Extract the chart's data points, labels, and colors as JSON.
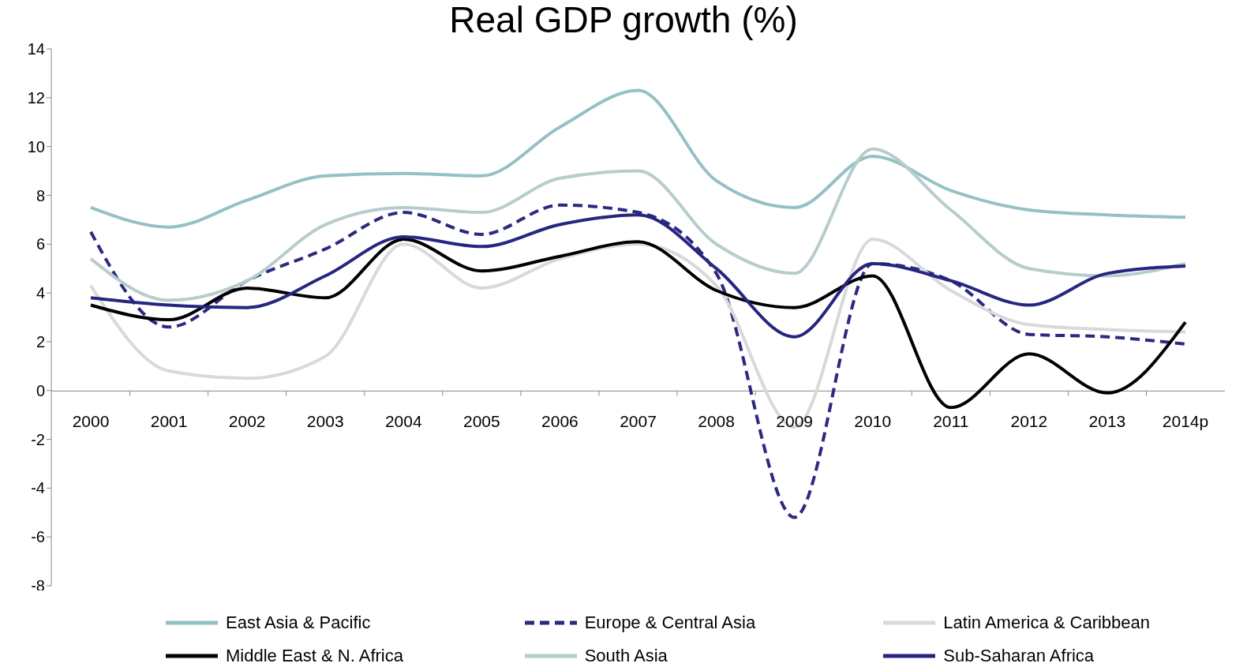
{
  "chart_data": {
    "type": "line",
    "title": "Real GDP growth (%)",
    "categories": [
      "2000",
      "2001",
      "2002",
      "2003",
      "2004",
      "2005",
      "2006",
      "2007",
      "2008",
      "2009",
      "2010",
      "2011",
      "2012",
      "2013",
      "2014p"
    ],
    "ylim": [
      -8,
      14
    ],
    "yticks": [
      -8,
      -6,
      -4,
      -2,
      0,
      2,
      4,
      6,
      8,
      10,
      12,
      14
    ],
    "grid": false,
    "legend": "bottom",
    "marker": "none",
    "series": [
      {
        "name": "East Asia & Pacific",
        "color": "#93c1c4",
        "line_style": "solid",
        "values": [
          7.5,
          6.7,
          7.8,
          8.8,
          8.9,
          8.8,
          10.8,
          12.3,
          8.6,
          7.5,
          9.6,
          8.2,
          7.4,
          7.2,
          7.1
        ]
      },
      {
        "name": "Europe & Central Asia",
        "color": "#2a2a80",
        "line_style": "dashed",
        "values": [
          6.5,
          2.6,
          4.5,
          5.8,
          7.3,
          6.4,
          7.6,
          7.3,
          4.8,
          -5.2,
          5.2,
          4.5,
          2.3,
          2.2,
          1.9
        ]
      },
      {
        "name": "Latin America & Caribbean",
        "color": "#d9d9d9",
        "line_style": "solid",
        "values": [
          4.3,
          0.8,
          0.5,
          1.4,
          6.0,
          4.2,
          5.4,
          6.0,
          4.3,
          -1.5,
          6.2,
          4.1,
          2.7,
          2.5,
          2.4
        ]
      },
      {
        "name": "Middle East & N. Africa",
        "color": "#000000",
        "line_style": "solid",
        "values": [
          3.5,
          2.9,
          4.2,
          3.8,
          6.2,
          4.9,
          5.5,
          6.1,
          4.1,
          3.4,
          4.7,
          -0.7,
          1.5,
          -0.1,
          2.8
        ]
      },
      {
        "name": "South Asia",
        "color": "#b7cccd",
        "line_style": "solid",
        "values": [
          5.4,
          3.7,
          4.5,
          6.8,
          7.5,
          7.3,
          8.7,
          9.0,
          6.0,
          4.8,
          9.9,
          7.4,
          5.0,
          4.7,
          5.2
        ]
      },
      {
        "name": "Sub-Saharan Africa",
        "color": "#262680",
        "line_style": "solid",
        "values": [
          3.8,
          3.5,
          3.4,
          4.7,
          6.3,
          5.9,
          6.8,
          7.2,
          5.0,
          2.2,
          5.2,
          4.5,
          3.5,
          4.8,
          5.1
        ]
      }
    ]
  }
}
